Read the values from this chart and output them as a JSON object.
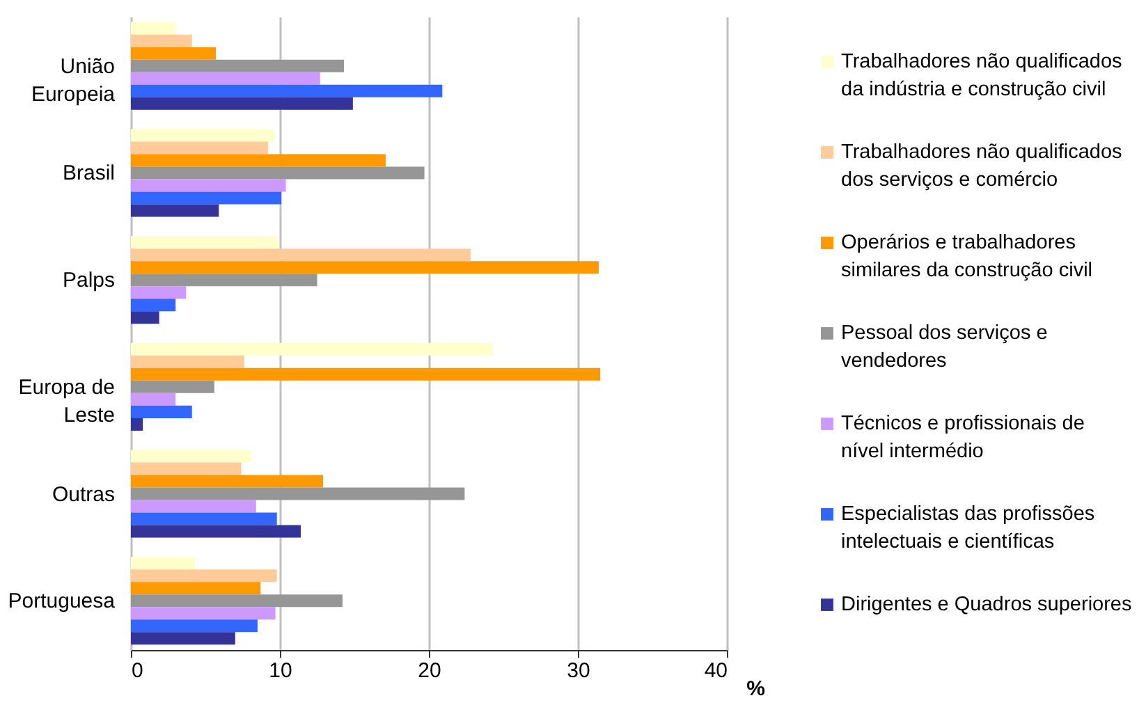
{
  "chart_data": {
    "type": "bar",
    "orientation": "horizontal",
    "xlabel": "%",
    "categories": [
      "União Europeia",
      "Brasil",
      "Palps",
      "Europa de Leste",
      "Outras",
      "Portuguesa"
    ],
    "series": [
      {
        "name": "Trabalhadores não qualificados da indústria e construção civil",
        "color": "#ffffcc",
        "values": [
          3.0,
          9.6,
          9.9,
          24.3,
          8.0,
          4.3
        ]
      },
      {
        "name": "Trabalhadores não qualificados  dos serviços e comércio",
        "color": "#ffcc99",
        "values": [
          4.1,
          9.2,
          22.8,
          7.6,
          7.4,
          9.8
        ]
      },
      {
        "name": "Operários e trabalhadores similares da construção civil",
        "color": "#ff9900",
        "values": [
          5.7,
          17.1,
          31.4,
          31.5,
          12.9,
          8.7
        ]
      },
      {
        "name": "Pessoal dos serviços e vendedores",
        "color": "#969696",
        "values": [
          14.3,
          19.7,
          12.5,
          5.6,
          22.4,
          14.2
        ]
      },
      {
        "name": "Técnicos e profissionais de nível intermédio",
        "color": "#cc99ff",
        "values": [
          12.7,
          10.4,
          3.7,
          3.0,
          8.4,
          9.7
        ]
      },
      {
        "name": "Especialistas das profissões intelectuais e científicas",
        "color": "#3366ff",
        "values": [
          20.9,
          10.1,
          3.0,
          4.1,
          9.8,
          8.5
        ]
      },
      {
        "name": "Dirigentes e Quadros superiores",
        "color": "#333399",
        "values": [
          14.9,
          5.9,
          1.9,
          0.8,
          11.4,
          7.0
        ]
      }
    ],
    "xlim": [
      0,
      40
    ],
    "xticks": [
      0,
      10,
      20,
      30,
      40
    ],
    "grid": "x",
    "legend": "right"
  }
}
